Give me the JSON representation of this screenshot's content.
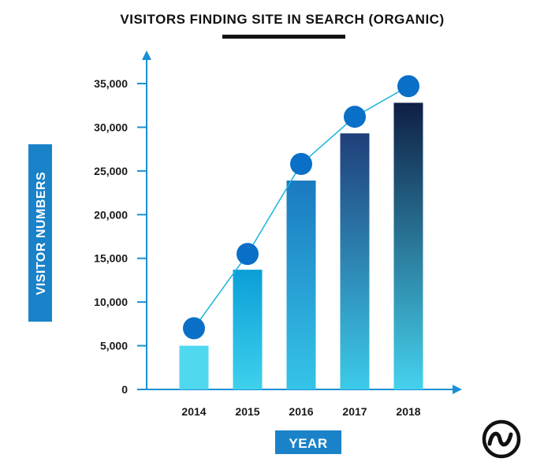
{
  "chart_data": {
    "type": "bar",
    "title": "VISITORS FINDING SITE IN SEARCH (ORGANIC)",
    "xlabel": "YEAR",
    "ylabel": "VISITOR NUMBERS",
    "categories": [
      "2014",
      "2015",
      "2016",
      "2017",
      "2018"
    ],
    "values": [
      5000,
      13700,
      23900,
      29300,
      32800
    ],
    "trend_line": [
      7000,
      15500,
      25800,
      31200,
      34700
    ],
    "ylim": [
      0,
      35000
    ],
    "yticks": [
      0,
      5000,
      10000,
      15000,
      20000,
      25000,
      30000,
      35000
    ],
    "ytick_labels": [
      "0",
      "5,000",
      "10,000",
      "15,000",
      "20,000",
      "25,000",
      "30,000",
      "35,000"
    ],
    "grid": false,
    "legend": "none"
  },
  "colors": {
    "axis": "#1a8fd6",
    "badge": "#1a82c8",
    "marker": "#0a6fc7",
    "line": "#1ab4e0",
    "bar_top": [
      "#4fd8f0",
      "#0a9fd8",
      "#1a7ac0",
      "#1f3f7a",
      "#0f1f45"
    ],
    "bar_bottom": [
      "#4fd8f0",
      "#3fd0ec",
      "#35c4e8",
      "#3ccbea",
      "#45d2ee"
    ],
    "title_underline": "#111111"
  },
  "icons": {
    "logo": "wave-circle-logo"
  }
}
